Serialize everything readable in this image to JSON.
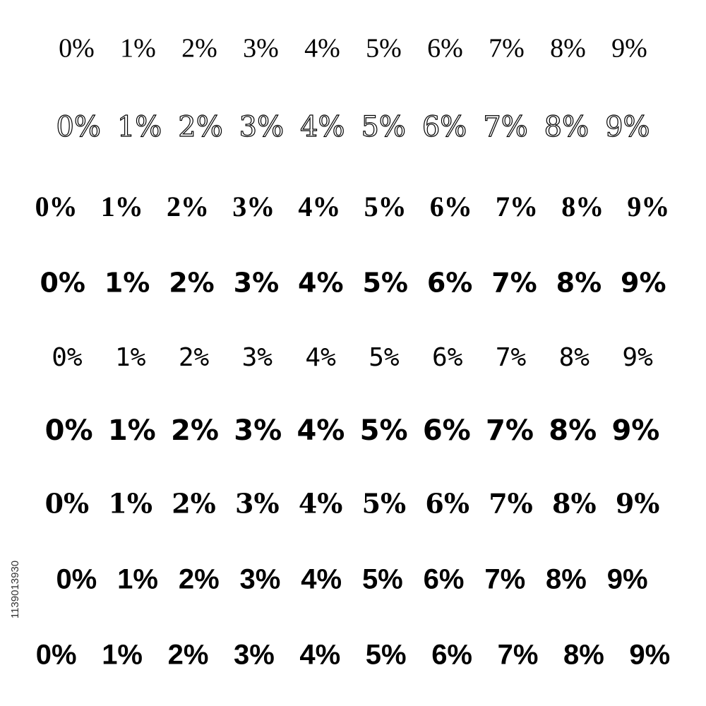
{
  "rows": [
    [
      "0%",
      "1%",
      "2%",
      "3%",
      "4%",
      "5%",
      "6%",
      "7%",
      "8%",
      "9%"
    ],
    [
      "0%",
      "1%",
      "2%",
      "3%",
      "4%",
      "5%",
      "6%",
      "7%",
      "8%",
      "9%"
    ],
    [
      "0%",
      "1%",
      "2%",
      "3%",
      "4%",
      "5%",
      "6%",
      "7%",
      "8%",
      "9%"
    ],
    [
      "0%",
      "1%",
      "2%",
      "3%",
      "4%",
      "5%",
      "6%",
      "7%",
      "8%",
      "9%"
    ],
    [
      "0%",
      "1%",
      "2%",
      "3%",
      "4%",
      "5%",
      "6%",
      "7%",
      "8%",
      "9%"
    ],
    [
      "0%",
      "1%",
      "2%",
      "3%",
      "4%",
      "5%",
      "6%",
      "7%",
      "8%",
      "9%"
    ],
    [
      "0%",
      "1%",
      "2%",
      "3%",
      "4%",
      "5%",
      "6%",
      "7%",
      "8%",
      "9%"
    ],
    [
      "0%",
      "1%",
      "2%",
      "3%",
      "4%",
      "5%",
      "6%",
      "7%",
      "8%",
      "9%"
    ],
    [
      "0%",
      "1%",
      "2%",
      "3%",
      "4%",
      "5%",
      "6%",
      "7%",
      "8%",
      "9%"
    ]
  ],
  "id_label": "1139013930"
}
